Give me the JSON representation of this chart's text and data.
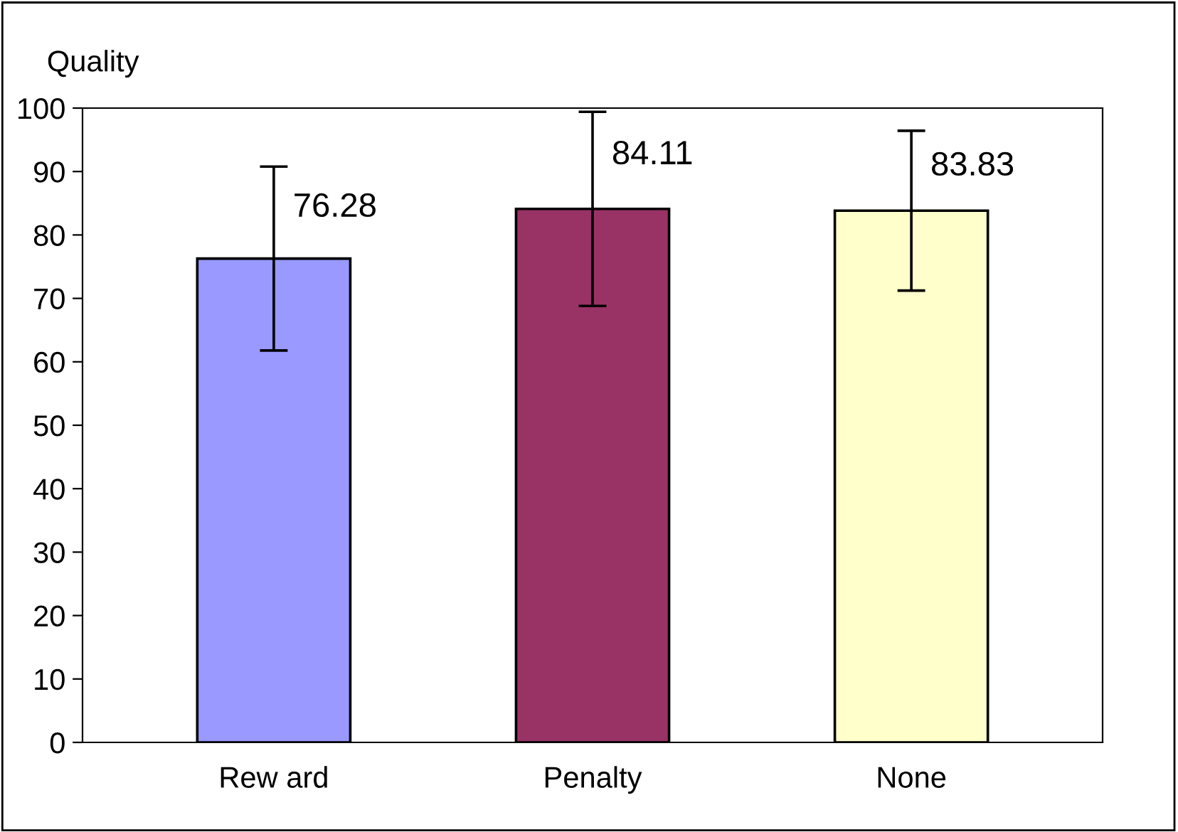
{
  "chart_data": {
    "type": "bar",
    "ylabel": "Quality",
    "categories": [
      "Rew ard",
      "Penalty",
      "None"
    ],
    "values": [
      76.28,
      84.11,
      83.83
    ],
    "colors": [
      "#9999ff",
      "#993366",
      "#ffffcc"
    ],
    "errors": [
      14.5,
      15.3,
      12.6
    ],
    "ylim": [
      0,
      100
    ],
    "yticks": [
      0,
      10,
      20,
      30,
      40,
      50,
      60,
      70,
      80,
      90,
      100
    ],
    "data_labels": true,
    "grid": false,
    "legend": false
  }
}
